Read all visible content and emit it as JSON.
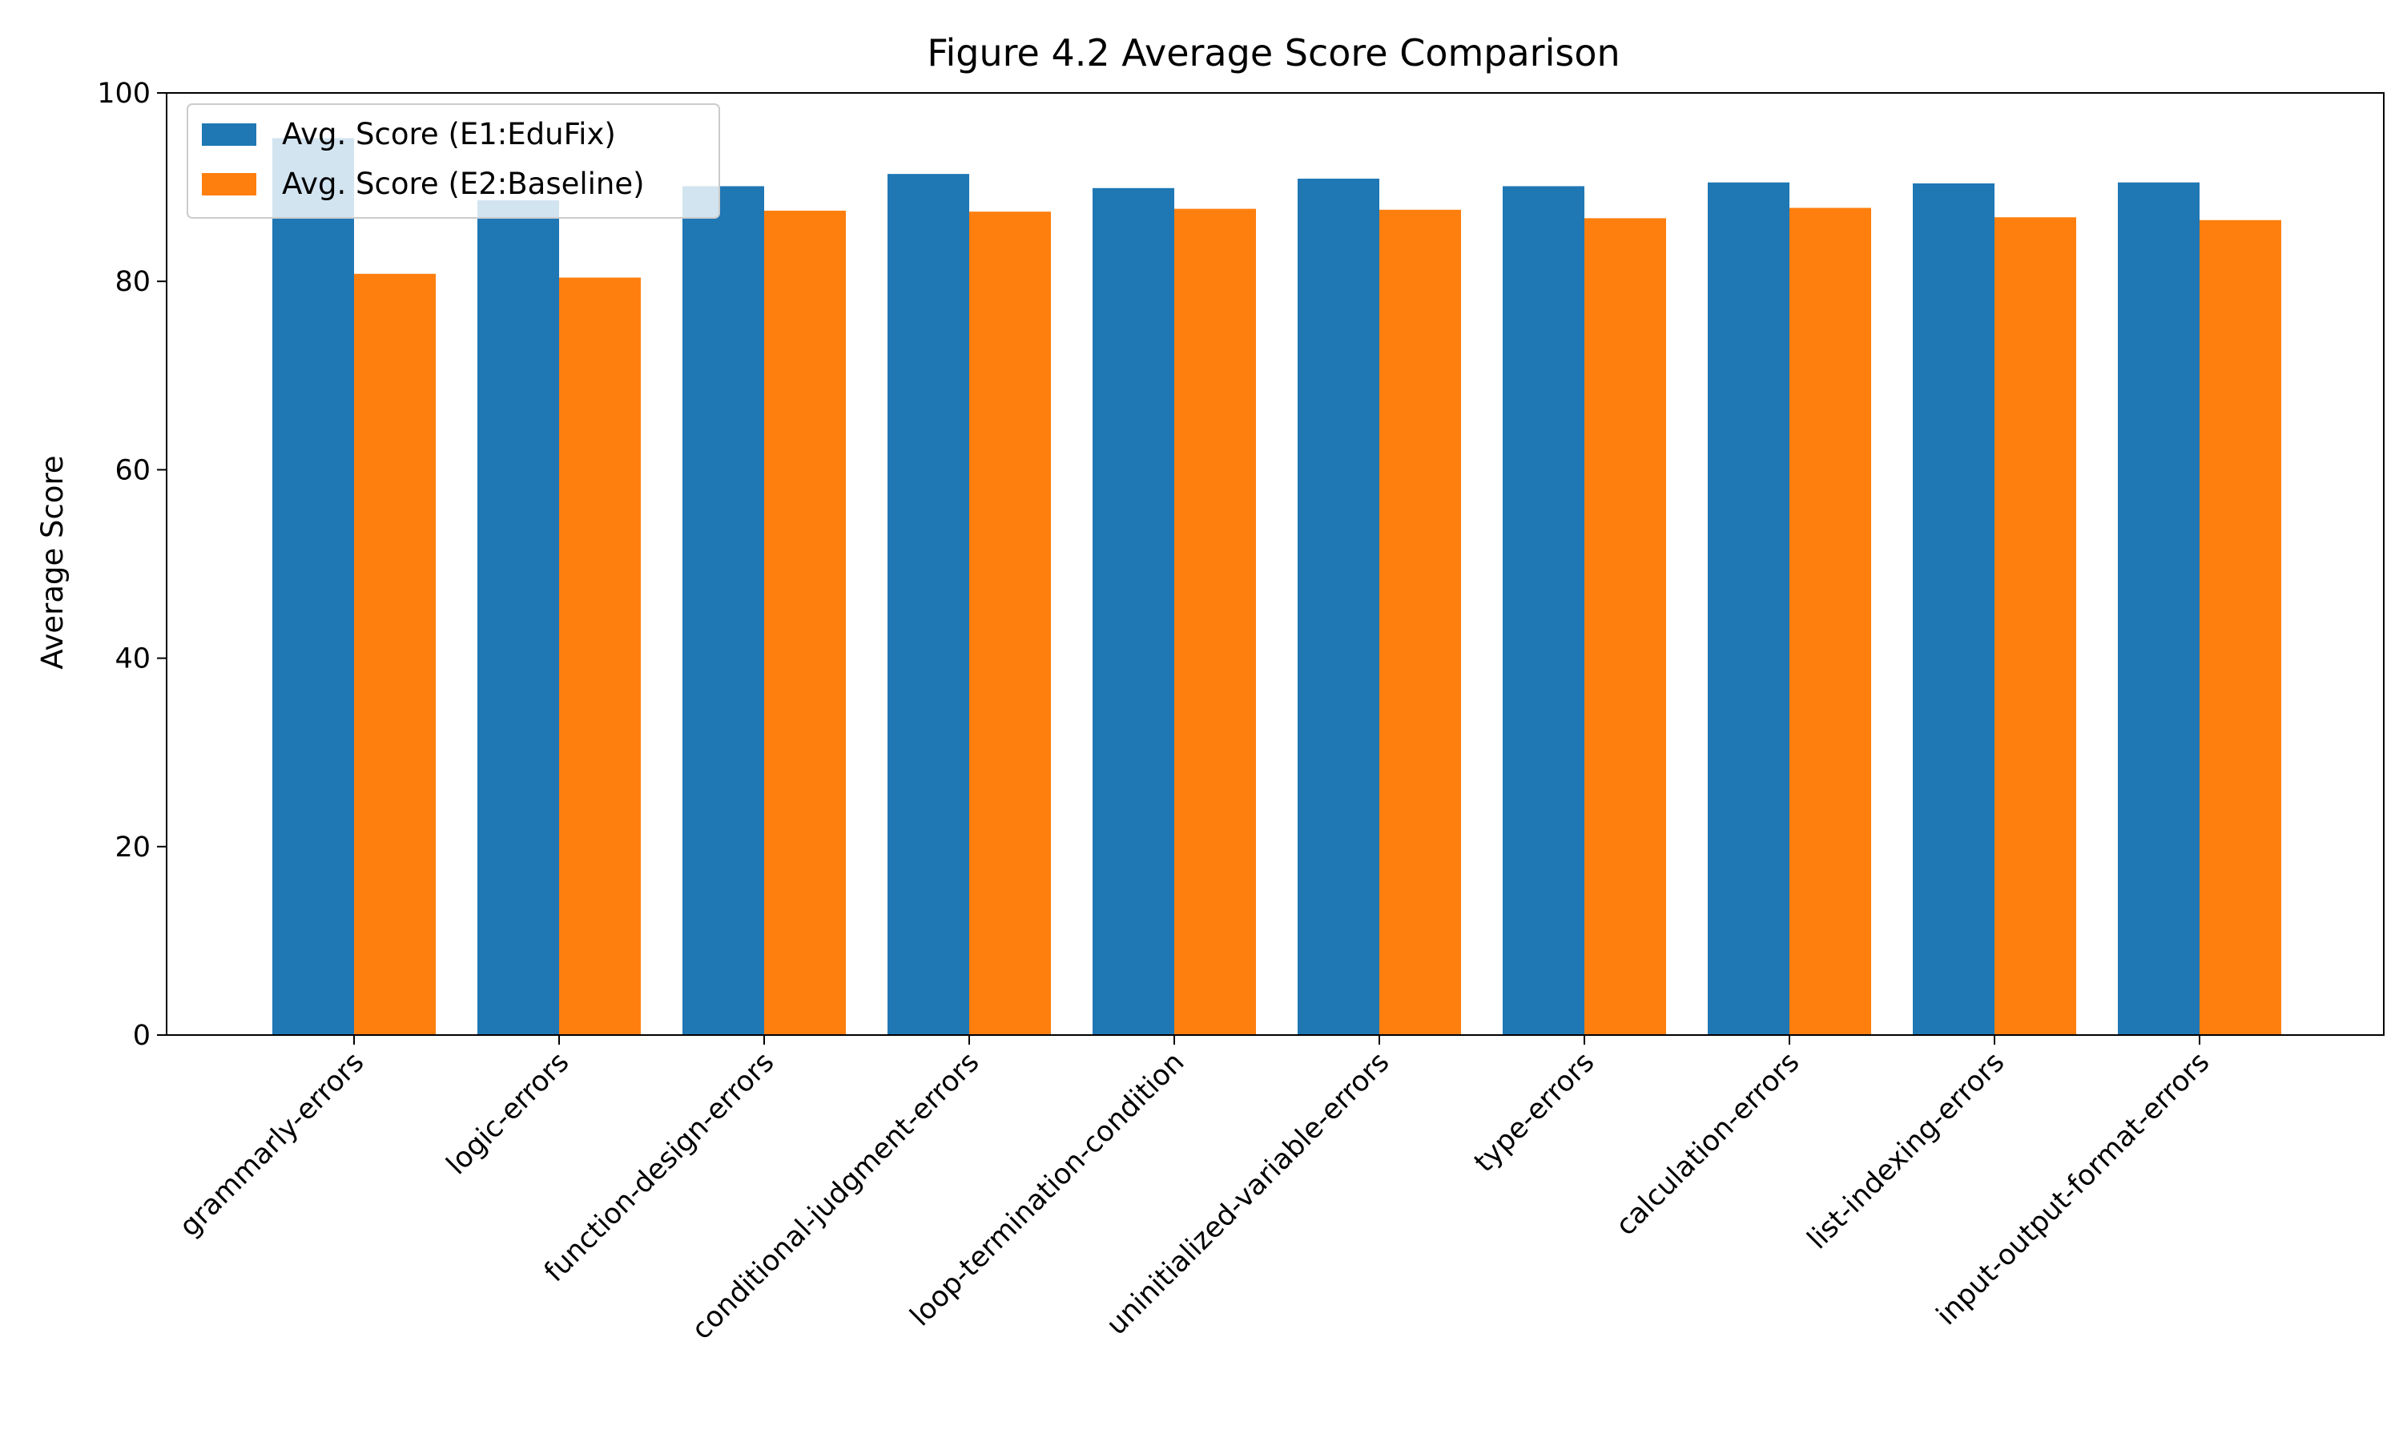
{
  "chart_data": {
    "type": "bar",
    "title": "Figure 4.2 Average Score Comparison",
    "xlabel": "",
    "ylabel": "Average Score",
    "ylim": [
      0,
      100
    ],
    "yticks": [
      0,
      20,
      40,
      60,
      80,
      100
    ],
    "categories": [
      "grammarly-errors",
      "logic-errors",
      "function-design-errors",
      "conditional-judgment-errors",
      "loop-termination-condition",
      "uninitialized-variable-errors",
      "type-errors",
      "calculation-errors",
      "list-indexing-errors",
      "input-output-format-errors"
    ],
    "series": [
      {
        "name": "Avg. Score (E1:EduFix)",
        "color": "#1f77b4",
        "values": [
          95.2,
          88.6,
          90.1,
          91.4,
          89.9,
          90.9,
          90.1,
          90.5,
          90.4,
          90.5
        ]
      },
      {
        "name": "Avg. Score (E2:Baseline)",
        "color": "#ff7f0e",
        "values": [
          80.8,
          80.4,
          87.5,
          87.4,
          87.7,
          87.6,
          86.7,
          87.8,
          86.8,
          86.5
        ]
      }
    ],
    "legend": "upper-left",
    "grid": false
  }
}
